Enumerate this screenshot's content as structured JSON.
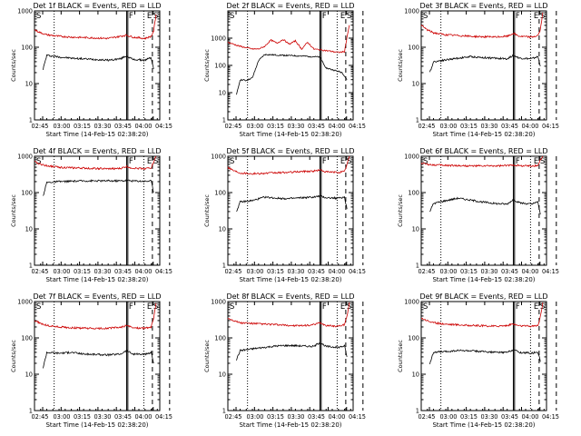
{
  "colors": {
    "events": "#000000",
    "lld": "#cc0000",
    "background": "#ffffff",
    "axes": "#000000"
  },
  "chart_data": [
    {
      "type": "line",
      "title": "Det 1f BLACK = Events, RED = LLD",
      "xlabel": "Start Time (14-Feb-15 02:38:20)",
      "ylabel": "Counts/sec",
      "x_ticks": [
        "02:45",
        "03:00",
        "03:15",
        "03:30",
        "03:45",
        "04:00",
        "04:15"
      ],
      "y_ticks": [
        "1",
        "10",
        "100",
        "1000"
      ],
      "y_scale": "log",
      "ylim": [
        1,
        1000
      ],
      "xlim_minutes": [
        0,
        102
      ],
      "vertical_lines": {
        "dotted_at_min": [
          16,
          89
        ],
        "solid_double_at_min": [
          75,
          76
        ],
        "dashed_at_min": [
          96,
          110
        ]
      },
      "markers": {
        "left": "S",
        "right_1": "F",
        "right_2": "E",
        "right_3": "S"
      },
      "series": [
        {
          "name": "Events",
          "color": "black",
          "x": [
            7,
            10,
            20,
            30,
            40,
            50,
            60,
            70,
            75,
            80,
            90,
            95,
            97
          ],
          "values": [
            25,
            60,
            54,
            50,
            48,
            46,
            44,
            48,
            58,
            46,
            44,
            52,
            25
          ]
        },
        {
          "name": "LLD",
          "color": "red",
          "x": [
            0,
            5,
            10,
            20,
            30,
            40,
            50,
            60,
            70,
            75,
            80,
            90,
            95,
            97,
            99
          ],
          "values": [
            300,
            250,
            220,
            200,
            190,
            185,
            180,
            175,
            200,
            215,
            190,
            175,
            200,
            280,
            800
          ]
        }
      ]
    },
    {
      "type": "line",
      "title": "Det 2f BLACK = Events, RED = LLD",
      "xlabel": "Start Time (14-Feb-15 02:38:20)",
      "ylabel": "Counts/sec",
      "x_ticks": [
        "02:45",
        "03:00",
        "03:15",
        "03:30",
        "03:45",
        "04:00",
        "04:15"
      ],
      "y_ticks": [
        "1",
        "10",
        "100",
        "1000"
      ],
      "y_scale": "log",
      "ylim": [
        1,
        10000
      ],
      "xlim_minutes": [
        0,
        102
      ],
      "vertical_lines": {
        "dotted_at_min": [
          16,
          89
        ],
        "solid_double_at_min": [
          75,
          76
        ],
        "dashed_at_min": [
          96,
          110
        ]
      },
      "markers": {
        "left": "S",
        "right_1": "F",
        "right_2": "E",
        "right_3": "S"
      },
      "series": [
        {
          "name": "Events",
          "color": "black",
          "x": [
            7,
            10,
            15,
            20,
            25,
            30,
            40,
            50,
            60,
            70,
            75,
            80,
            90,
            93,
            97
          ],
          "values": [
            8,
            30,
            28,
            35,
            150,
            250,
            240,
            230,
            220,
            210,
            200,
            80,
            60,
            55,
            30
          ]
        },
        {
          "name": "LLD",
          "color": "red",
          "x": [
            0,
            10,
            20,
            25,
            30,
            35,
            40,
            45,
            50,
            55,
            60,
            65,
            70,
            80,
            90,
            95,
            97,
            99
          ],
          "values": [
            700,
            500,
            400,
            400,
            500,
            850,
            650,
            900,
            600,
            800,
            400,
            700,
            400,
            350,
            300,
            320,
            1100,
            3000
          ]
        }
      ]
    },
    {
      "type": "line",
      "title": "Det 3f BLACK = Events, RED = LLD",
      "xlabel": "Start Time (14-Feb-15 02:38:20)",
      "ylabel": "Counts/sec",
      "x_ticks": [
        "02:45",
        "03:00",
        "03:15",
        "03:30",
        "03:45",
        "04:00",
        "04:15"
      ],
      "y_ticks": [
        "1",
        "10",
        "100",
        "1000"
      ],
      "y_scale": "log",
      "ylim": [
        1,
        1000
      ],
      "xlim_minutes": [
        0,
        102
      ],
      "vertical_lines": {
        "dotted_at_min": [
          16,
          89
        ],
        "solid_double_at_min": [
          75,
          76
        ],
        "dashed_at_min": [
          96,
          110
        ]
      },
      "markers": {
        "left": "S",
        "right_1": "F",
        "right_2": "E",
        "right_3": "S"
      },
      "series": [
        {
          "name": "Events",
          "color": "black",
          "x": [
            7,
            10,
            20,
            30,
            40,
            50,
            60,
            70,
            75,
            80,
            90,
            95,
            97
          ],
          "values": [
            20,
            40,
            45,
            50,
            55,
            52,
            50,
            48,
            60,
            50,
            48,
            55,
            30
          ]
        },
        {
          "name": "LLD",
          "color": "red",
          "x": [
            0,
            5,
            10,
            20,
            30,
            40,
            50,
            60,
            70,
            75,
            80,
            90,
            95,
            97,
            99
          ],
          "values": [
            400,
            300,
            250,
            220,
            210,
            200,
            195,
            190,
            200,
            240,
            200,
            190,
            210,
            300,
            900
          ]
        }
      ]
    },
    {
      "type": "line",
      "title": "Det 4f BLACK = Events, RED = LLD",
      "xlabel": "Start Time (14-Feb-15 02:38:20)",
      "ylabel": "Counts/sec",
      "x_ticks": [
        "02:45",
        "03:00",
        "03:15",
        "03:30",
        "03:45",
        "04:00",
        "04:15"
      ],
      "y_ticks": [
        "1",
        "10",
        "100",
        "1000"
      ],
      "y_scale": "log",
      "ylim": [
        1,
        1000
      ],
      "xlim_minutes": [
        0,
        102
      ],
      "vertical_lines": {
        "dotted_at_min": [
          16,
          89
        ],
        "solid_double_at_min": [
          75,
          76
        ],
        "dashed_at_min": [
          96,
          110
        ]
      },
      "markers": {
        "left": "S",
        "right_1": "F",
        "right_2": "E",
        "right_3": "S"
      },
      "series": [
        {
          "name": "Events",
          "color": "black",
          "x": [
            7,
            10,
            20,
            30,
            40,
            50,
            60,
            70,
            75,
            80,
            90,
            95,
            97
          ],
          "values": [
            80,
            190,
            200,
            205,
            210,
            210,
            210,
            210,
            215,
            210,
            205,
            210,
            100
          ]
        },
        {
          "name": "LLD",
          "color": "red",
          "x": [
            0,
            5,
            10,
            20,
            30,
            40,
            50,
            60,
            70,
            75,
            80,
            90,
            95,
            97,
            99
          ],
          "values": [
            700,
            600,
            550,
            500,
            480,
            470,
            460,
            450,
            460,
            520,
            470,
            460,
            480,
            700,
            1000
          ]
        }
      ]
    },
    {
      "type": "line",
      "title": "Det 5f BLACK = Events, RED = LLD",
      "xlabel": "Start Time (14-Feb-15 02:38:20)",
      "ylabel": "Counts/sec",
      "x_ticks": [
        "02:45",
        "03:00",
        "03:15",
        "03:30",
        "03:45",
        "04:00",
        "04:15"
      ],
      "y_ticks": [
        "1",
        "10",
        "100",
        "1000"
      ],
      "y_scale": "log",
      "ylim": [
        1,
        1000
      ],
      "xlim_minutes": [
        0,
        102
      ],
      "vertical_lines": {
        "dotted_at_min": [
          16,
          89
        ],
        "solid_double_at_min": [
          75,
          76
        ],
        "dashed_at_min": [
          96,
          110
        ]
      },
      "markers": {
        "left": "S",
        "right_1": "F",
        "right_2": "E",
        "right_3": "S"
      },
      "series": [
        {
          "name": "Events",
          "color": "black",
          "x": [
            7,
            10,
            20,
            30,
            40,
            50,
            60,
            70,
            75,
            80,
            90,
            95,
            97
          ],
          "values": [
            30,
            55,
            60,
            75,
            70,
            68,
            72,
            75,
            80,
            72,
            70,
            75,
            35
          ]
        },
        {
          "name": "LLD",
          "color": "red",
          "x": [
            0,
            5,
            10,
            20,
            30,
            40,
            50,
            60,
            70,
            75,
            80,
            90,
            95,
            97,
            99
          ],
          "values": [
            500,
            400,
            350,
            330,
            340,
            350,
            360,
            380,
            390,
            420,
            370,
            360,
            380,
            600,
            1000
          ]
        }
      ]
    },
    {
      "type": "line",
      "title": "Det 6f BLACK = Events, RED = LLD",
      "xlabel": "Start Time (14-Feb-15 02:38:20)",
      "ylabel": "Counts/sec",
      "x_ticks": [
        "02:45",
        "03:00",
        "03:15",
        "03:30",
        "03:45",
        "04:00",
        "04:15"
      ],
      "y_ticks": [
        "1",
        "10",
        "100",
        "1000"
      ],
      "y_scale": "log",
      "ylim": [
        1,
        1000
      ],
      "xlim_minutes": [
        0,
        102
      ],
      "vertical_lines": {
        "dotted_at_min": [
          16,
          89
        ],
        "solid_double_at_min": [
          75,
          76
        ],
        "dashed_at_min": [
          96,
          110
        ]
      },
      "markers": {
        "left": "S",
        "right_1": "F",
        "right_2": "E",
        "right_3": "S"
      },
      "series": [
        {
          "name": "Events",
          "color": "black",
          "x": [
            7,
            10,
            20,
            30,
            40,
            50,
            60,
            70,
            75,
            80,
            90,
            95,
            97
          ],
          "values": [
            30,
            50,
            60,
            70,
            62,
            55,
            50,
            48,
            65,
            52,
            48,
            55,
            25
          ]
        },
        {
          "name": "LLD",
          "color": "red",
          "x": [
            0,
            5,
            10,
            20,
            30,
            40,
            50,
            60,
            70,
            75,
            80,
            90,
            95,
            97,
            99
          ],
          "values": [
            650,
            600,
            580,
            560,
            550,
            540,
            540,
            540,
            550,
            580,
            550,
            540,
            560,
            800,
            1000
          ]
        }
      ]
    },
    {
      "type": "line",
      "title": "Det 7f BLACK = Events, RED = LLD",
      "xlabel": "Start Time (14-Feb-15 02:38:20)",
      "ylabel": "Counts/sec",
      "x_ticks": [
        "02:45",
        "03:00",
        "03:15",
        "03:30",
        "03:45",
        "04:00",
        "04:15"
      ],
      "y_ticks": [
        "1",
        "10",
        "100",
        "1000"
      ],
      "y_scale": "log",
      "ylim": [
        1,
        1000
      ],
      "xlim_minutes": [
        0,
        102
      ],
      "vertical_lines": {
        "dotted_at_min": [
          16,
          89
        ],
        "solid_double_at_min": [
          75,
          76
        ],
        "dashed_at_min": [
          96,
          110
        ]
      },
      "markers": {
        "left": "S",
        "right_1": "F",
        "right_2": "E",
        "right_3": "S"
      },
      "series": [
        {
          "name": "Events",
          "color": "black",
          "x": [
            7,
            10,
            20,
            30,
            40,
            50,
            60,
            70,
            75,
            80,
            90,
            95,
            97
          ],
          "values": [
            15,
            40,
            38,
            40,
            36,
            35,
            34,
            36,
            45,
            36,
            35,
            40,
            20
          ]
        },
        {
          "name": "LLD",
          "color": "red",
          "x": [
            0,
            5,
            10,
            20,
            30,
            40,
            50,
            60,
            70,
            75,
            80,
            90,
            95,
            97,
            99
          ],
          "values": [
            300,
            250,
            220,
            200,
            190,
            185,
            180,
            185,
            195,
            220,
            190,
            185,
            200,
            350,
            900
          ]
        }
      ]
    },
    {
      "type": "line",
      "title": "Det 8f BLACK = Events, RED = LLD",
      "xlabel": "Start Time (14-Feb-15 02:38:20)",
      "ylabel": "Counts/sec",
      "x_ticks": [
        "02:45",
        "03:00",
        "03:15",
        "03:30",
        "03:45",
        "04:00",
        "04:15"
      ],
      "y_ticks": [
        "1",
        "10",
        "100",
        "1000"
      ],
      "y_scale": "log",
      "ylim": [
        1,
        1000
      ],
      "xlim_minutes": [
        0,
        102
      ],
      "vertical_lines": {
        "dotted_at_min": [
          16,
          89
        ],
        "solid_double_at_min": [
          75,
          76
        ],
        "dashed_at_min": [
          96,
          110
        ]
      },
      "markers": {
        "left": "S",
        "right_1": "F",
        "right_2": "E",
        "right_3": "S"
      },
      "series": [
        {
          "name": "Events",
          "color": "black",
          "x": [
            7,
            10,
            20,
            30,
            40,
            50,
            60,
            70,
            75,
            80,
            90,
            95,
            97
          ],
          "values": [
            25,
            45,
            50,
            55,
            60,
            62,
            60,
            58,
            75,
            58,
            55,
            60,
            30
          ]
        },
        {
          "name": "LLD",
          "color": "red",
          "x": [
            0,
            5,
            10,
            20,
            30,
            40,
            50,
            60,
            70,
            75,
            80,
            90,
            95,
            97,
            99
          ],
          "values": [
            350,
            300,
            260,
            250,
            240,
            230,
            220,
            215,
            230,
            260,
            220,
            210,
            230,
            400,
            950
          ]
        }
      ]
    },
    {
      "type": "line",
      "title": "Det 9f BLACK = Events, RED = LLD",
      "xlabel": "Start Time (14-Feb-15 02:38:20)",
      "ylabel": "Counts/sec",
      "x_ticks": [
        "02:45",
        "03:00",
        "03:15",
        "03:30",
        "03:45",
        "04:00",
        "04:15"
      ],
      "y_ticks": [
        "1",
        "10",
        "100",
        "1000"
      ],
      "y_scale": "log",
      "ylim": [
        1,
        1000
      ],
      "xlim_minutes": [
        0,
        102
      ],
      "vertical_lines": {
        "dotted_at_min": [
          16,
          89
        ],
        "solid_double_at_min": [
          75,
          76
        ],
        "dashed_at_min": [
          96,
          110
        ]
      },
      "markers": {
        "left": "S",
        "right_1": "F",
        "right_2": "E",
        "right_3": "S"
      },
      "series": [
        {
          "name": "Events",
          "color": "black",
          "x": [
            7,
            10,
            20,
            30,
            40,
            50,
            60,
            70,
            75,
            80,
            90,
            95,
            97
          ],
          "values": [
            20,
            40,
            42,
            45,
            44,
            42,
            40,
            40,
            48,
            40,
            38,
            42,
            22
          ]
        },
        {
          "name": "LLD",
          "color": "red",
          "x": [
            0,
            5,
            10,
            20,
            30,
            40,
            50,
            60,
            70,
            75,
            80,
            90,
            95,
            97,
            99
          ],
          "values": [
            350,
            300,
            260,
            240,
            230,
            220,
            215,
            210,
            220,
            240,
            215,
            210,
            220,
            380,
            950
          ]
        }
      ]
    }
  ]
}
